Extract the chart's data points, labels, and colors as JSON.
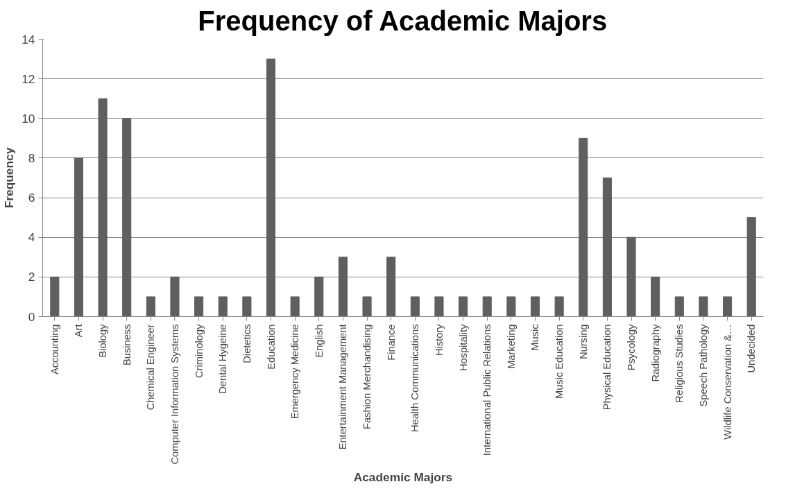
{
  "chart_data": {
    "type": "bar",
    "title": "Frequency of Academic Majors",
    "xlabel": "Academic Majors",
    "ylabel": "Frequency",
    "categories": [
      "Accounting",
      "Art",
      "Biology",
      "Business",
      "Chemical Engineer",
      "Computer Information Systems",
      "Criminology",
      "Dental Hygeine",
      "Dietetics",
      "Education",
      "Emergency Medicine",
      "English",
      "Entertainment Management",
      "Fashion Merchandising",
      "Finance",
      "Health Communications",
      "History",
      "Hospitality",
      "International Public Relations",
      "Marketing",
      "Music",
      "Music Education",
      "Nursing",
      "Physical Education",
      "Psycology",
      "Radiography",
      "Religious Studies",
      "Speech Pathology",
      "Wildlife Conservation &…",
      "Undecided"
    ],
    "values": [
      2,
      8,
      11,
      10,
      1,
      2,
      1,
      1,
      1,
      13,
      1,
      2,
      3,
      1,
      3,
      1,
      1,
      1,
      1,
      1,
      1,
      1,
      9,
      7,
      4,
      2,
      1,
      1,
      1,
      5
    ],
    "color": "#5f5f5f",
    "ylim": [
      0,
      14
    ],
    "yticks": [
      0,
      2,
      4,
      6,
      8,
      10,
      12,
      14
    ],
    "grid": "y"
  }
}
